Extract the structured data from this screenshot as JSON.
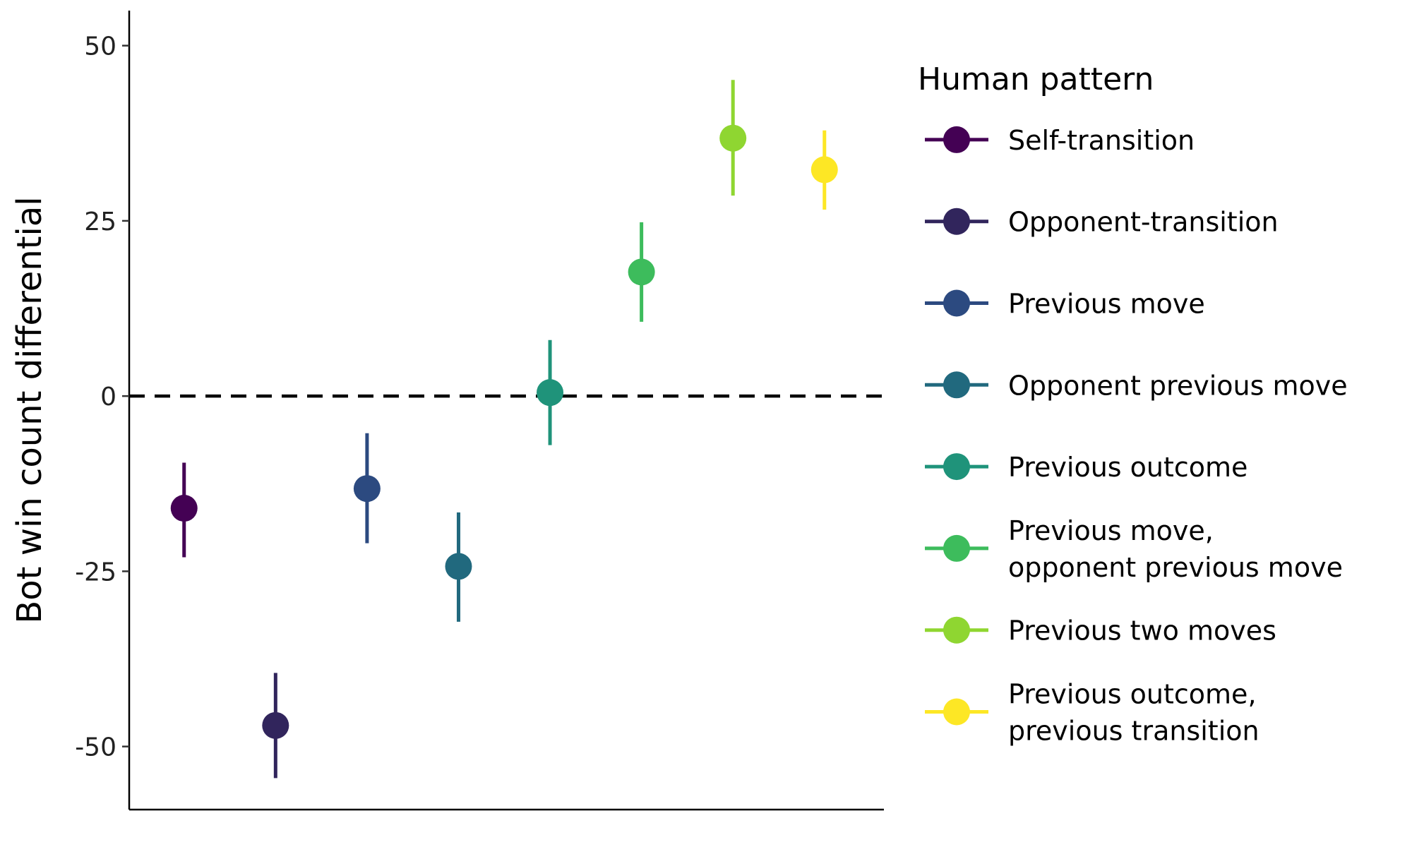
{
  "chart_data": {
    "type": "scatter",
    "title": "",
    "xlabel": "",
    "ylabel": "Bot win count differential",
    "ylim": [
      -59,
      55
    ],
    "yticks": [
      50,
      25,
      0,
      -25,
      -50
    ],
    "ytick_labels": [
      "50",
      "25",
      "0",
      "-25",
      "-50"
    ],
    "grid": false,
    "reference_line": {
      "y": 0,
      "style": "dashed"
    },
    "legend": {
      "title": "Human pattern",
      "position": "right"
    },
    "series": [
      {
        "name": "Self-transition",
        "label_lines": [
          "Self-transition"
        ],
        "color": "#440154",
        "y": -16,
        "ci": [
          -23,
          -9.5
        ]
      },
      {
        "name": "Opponent-transition",
        "label_lines": [
          "Opponent-transition"
        ],
        "color": "#31255C",
        "y": -47,
        "ci": [
          -54.5,
          -39.5
        ]
      },
      {
        "name": "Previous move",
        "label_lines": [
          "Previous move"
        ],
        "color": "#2C4A80",
        "y": -13.2,
        "ci": [
          -21,
          -5.3
        ]
      },
      {
        "name": "Opponent previous move",
        "label_lines": [
          "Opponent previous move"
        ],
        "color": "#21697E",
        "y": -24.3,
        "ci": [
          -32.2,
          -16.6
        ]
      },
      {
        "name": "Previous outcome",
        "label_lines": [
          "Previous outcome"
        ],
        "color": "#1F937A",
        "y": 0.5,
        "ci": [
          -7,
          8
        ]
      },
      {
        "name": "Previous move, opponent previous move",
        "label_lines": [
          "Previous move,",
          "opponent previous move"
        ],
        "color": "#3DBC5C",
        "y": 17.7,
        "ci": [
          10.6,
          24.8
        ]
      },
      {
        "name": "Previous two moves",
        "label_lines": [
          "Previous two moves"
        ],
        "color": "#8FD631",
        "y": 36.8,
        "ci": [
          28.6,
          45.1
        ]
      },
      {
        "name": "Previous outcome, previous transition",
        "label_lines": [
          "Previous outcome,",
          "previous transition"
        ],
        "color": "#FDE725",
        "y": 32.3,
        "ci": [
          26.6,
          37.9
        ]
      }
    ]
  }
}
